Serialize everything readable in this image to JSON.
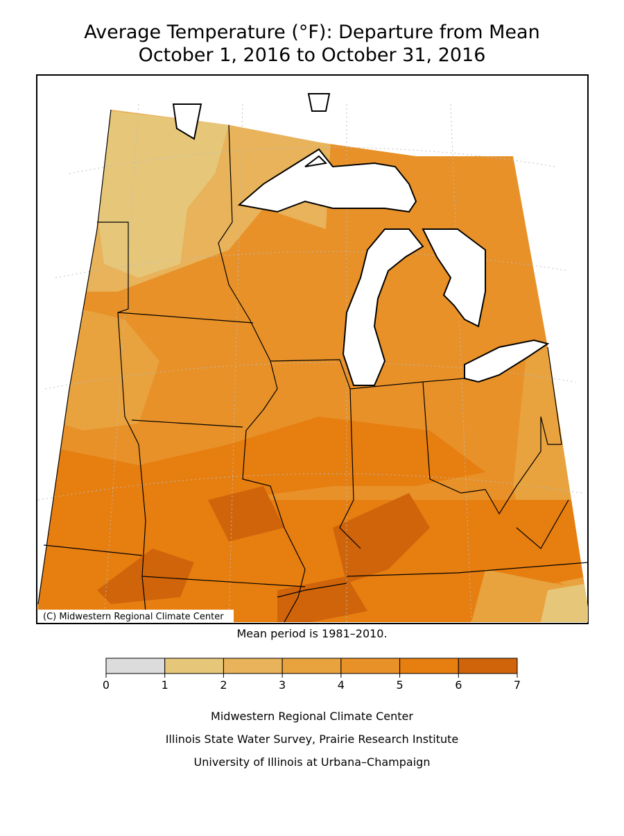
{
  "title": [
    "Average Temperature (°F): Departure from Mean",
    "October 1, 2016 to October 31, 2016"
  ],
  "map": {
    "copyright": "(C) Midwestern Regional Climate Center",
    "note": "Mean period is 1981–2010."
  },
  "legend": {
    "bins": [
      0,
      1,
      2,
      3,
      4,
      5,
      6,
      7
    ],
    "colors": [
      "#dcdcdc",
      "#e6c77a",
      "#e8b35a",
      "#e8a23e",
      "#e89128",
      "#e67e10",
      "#d0640a"
    ]
  },
  "credits": [
    "Midwestern Regional Climate Center",
    "Illinois State Water Survey, Prairie Research Institute",
    "University of Illinois at Urbana–Champaign"
  ]
}
